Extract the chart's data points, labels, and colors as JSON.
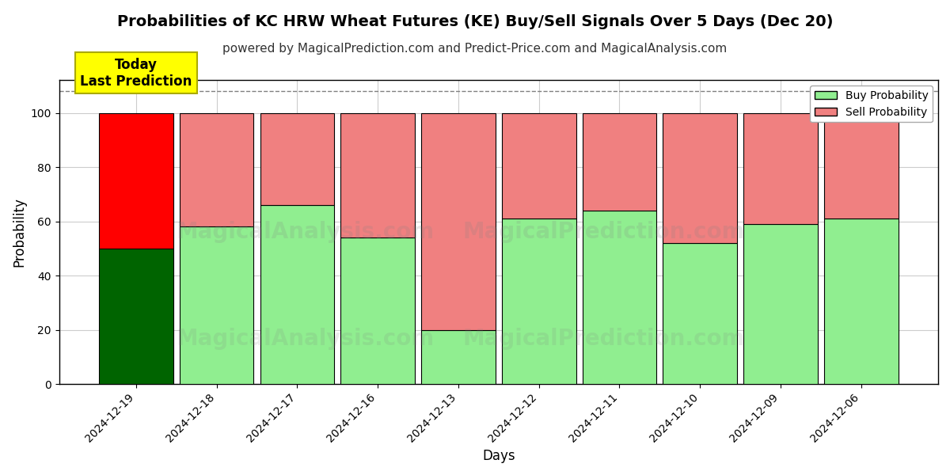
{
  "title": "Probabilities of KC HRW Wheat Futures (KE) Buy/Sell Signals Over 5 Days (Dec 20)",
  "subtitle": "powered by MagicalPrediction.com and Predict-Price.com and MagicalAnalysis.com",
  "xlabel": "Days",
  "ylabel": "Probability",
  "categories": [
    "2024-12-19",
    "2024-12-18",
    "2024-12-17",
    "2024-12-16",
    "2024-12-13",
    "2024-12-12",
    "2024-12-11",
    "2024-12-10",
    "2024-12-09",
    "2024-12-06"
  ],
  "buy_values": [
    50,
    58,
    66,
    54,
    20,
    61,
    64,
    52,
    59,
    61
  ],
  "sell_values": [
    50,
    42,
    34,
    46,
    80,
    39,
    36,
    48,
    41,
    39
  ],
  "today_bar_buy_color": "#006400",
  "today_bar_sell_color": "#ff0000",
  "normal_bar_buy_color": "#90EE90",
  "normal_bar_sell_color": "#F08080",
  "bar_edge_color": "#000000",
  "ylim": [
    0,
    112
  ],
  "yticks": [
    0,
    20,
    40,
    60,
    80,
    100
  ],
  "dashed_line_y": 108,
  "annotation_text": "Today\nLast Prediction",
  "annotation_bg_color": "#FFFF00",
  "title_fontsize": 14,
  "subtitle_fontsize": 11,
  "legend_buy_label": "Buy Probability",
  "legend_sell_label": "Sell Probability",
  "background_color": "#ffffff",
  "grid_color": "#cccccc",
  "bar_width": 0.92
}
